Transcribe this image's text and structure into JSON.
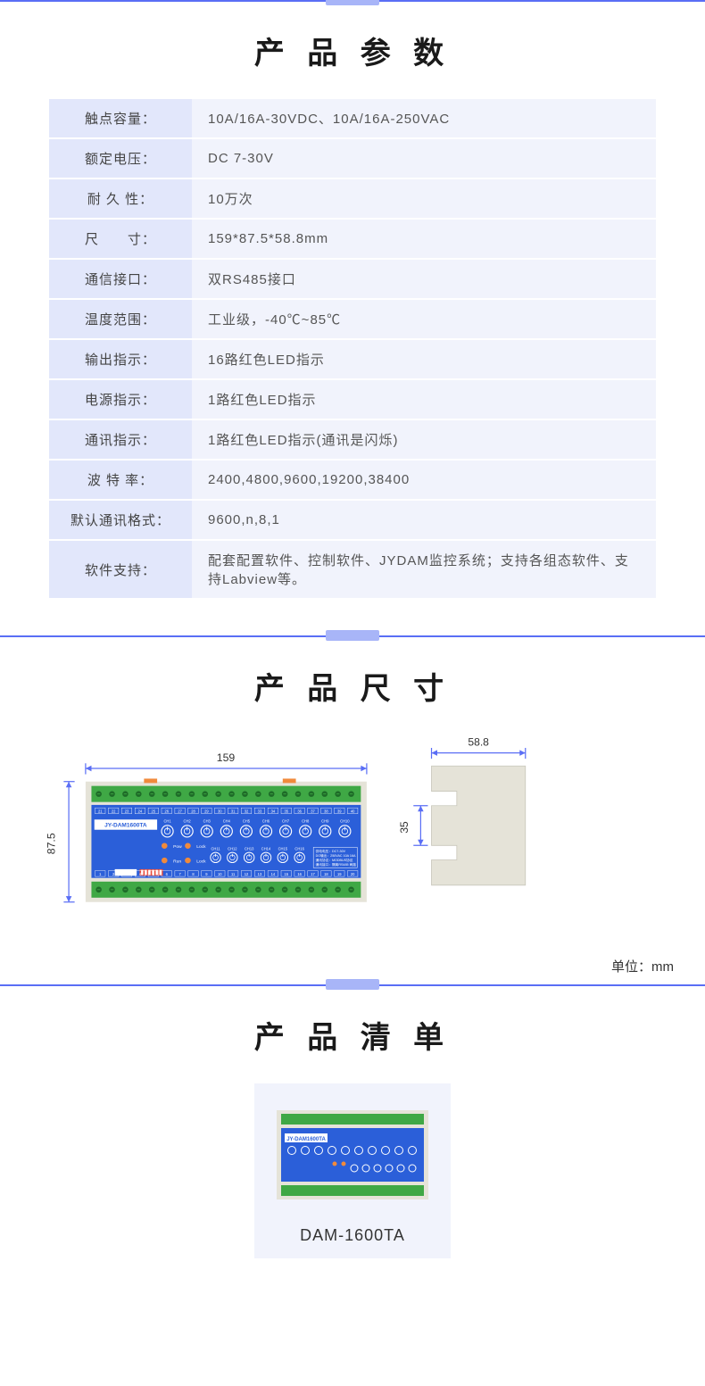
{
  "sections": {
    "params_title": "产 品 参 数",
    "dims_title": "产 品 尺 寸",
    "list_title": "产 品 清 单"
  },
  "spec_rows": [
    {
      "label": "触点容量：",
      "value": "10A/16A-30VDC、10A/16A-250VAC"
    },
    {
      "label": "额定电压：",
      "value": "DC 7-30V"
    },
    {
      "label": "耐 久 性：",
      "value": "10万次"
    },
    {
      "label": "尺　　寸：",
      "value": "159*87.5*58.8mm"
    },
    {
      "label": "通信接口：",
      "value": "双RS485接口"
    },
    {
      "label": "温度范围：",
      "value": "工业级，-40℃~85℃"
    },
    {
      "label": "输出指示：",
      "value": "16路红色LED指示"
    },
    {
      "label": "电源指示：",
      "value": "1路红色LED指示"
    },
    {
      "label": "通讯指示：",
      "value": "1路红色LED指示(通讯是闪烁)"
    },
    {
      "label": "波 特 率：",
      "value": "2400,4800,9600,19200,38400"
    },
    {
      "label": "默认通讯格式：",
      "value": "9600,n,8,1"
    },
    {
      "label": "软件支持：",
      "value": "配套配置软件、控制软件、JYDAM监控系统；支持各组态软件、支持Labview等。"
    }
  ],
  "dimensions": {
    "width": "159",
    "height": "87.5",
    "depth": "58.8",
    "slot": "35",
    "unit_label": "单位：mm",
    "device_label": "JY-DAM1600TA",
    "colors": {
      "case": "#e5e3d8",
      "terminal_green": "#3fa845",
      "terminal_dark": "#1e6b28",
      "pcb_blue": "#2b5fd9",
      "orange": "#f08a3c",
      "red": "#e94b3c",
      "white": "#ffffff",
      "dim_line": "#5a6ef5",
      "text": "#333333"
    },
    "ch_top": [
      "CH1",
      "CH2",
      "CH3",
      "CH4",
      "CH5",
      "CH6",
      "CH7",
      "CH8",
      "CH9",
      "CH10"
    ],
    "ch_bot": [
      "CH11",
      "CH12",
      "CH13",
      "CH14",
      "CH15",
      "CH16"
    ],
    "leds": [
      "Pow",
      "Lock",
      "Run",
      "Lock"
    ]
  },
  "product_list": {
    "caption": "DAM-1600TA"
  }
}
